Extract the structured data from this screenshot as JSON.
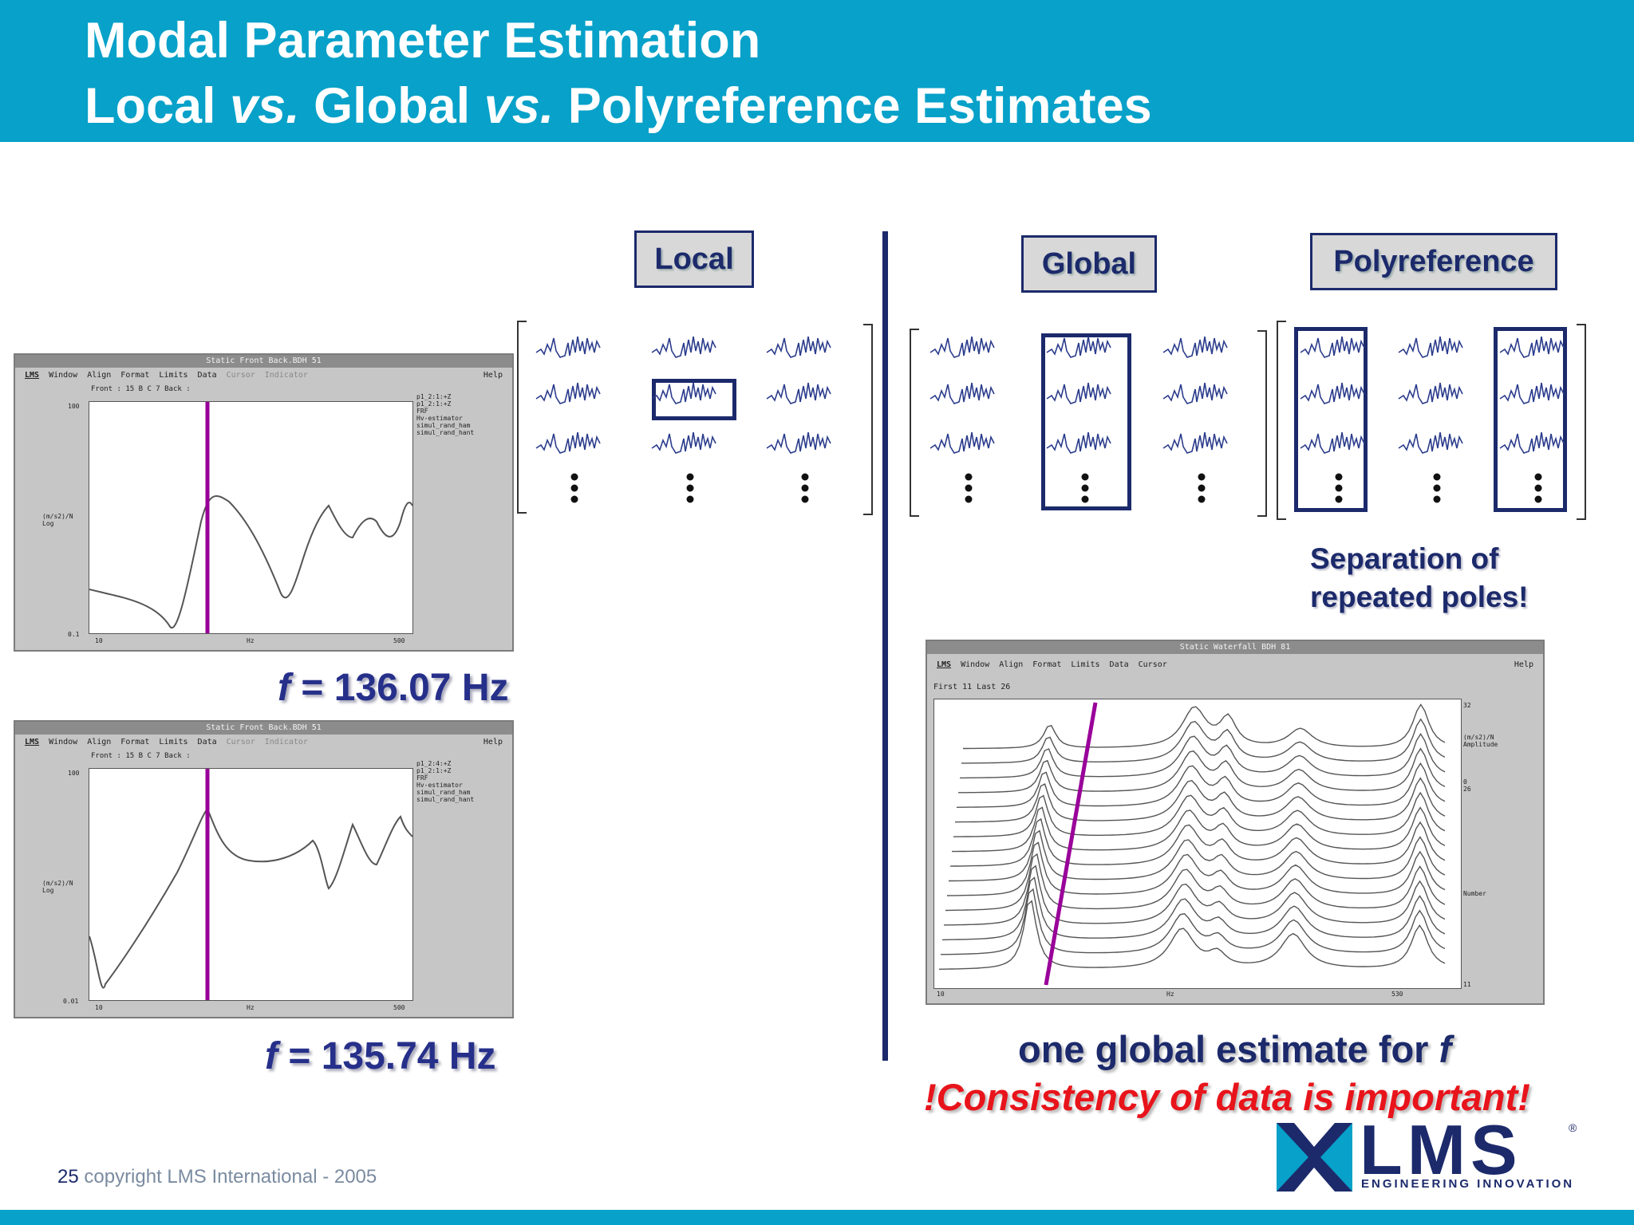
{
  "slide": {
    "title_line1": "Modal Parameter Estimation",
    "title_line2": {
      "a": "Local ",
      "b": "vs.",
      "c": " Global ",
      "d": "vs.",
      "e": " Polyreference Estimates"
    },
    "label_local": "Local",
    "label_global": "Global",
    "label_poly": "Polyreference",
    "freq1": {
      "sym": "f",
      "rest": " = 136.07 Hz"
    },
    "freq2": {
      "sym": "f",
      "rest": " = 135.74 Hz"
    },
    "separation": {
      "line1": "Separation of",
      "line2": "repeated poles!"
    },
    "global_note": {
      "text": "one global estimate for ",
      "sym": "f"
    },
    "consistency": "!Consistency of data is important!",
    "footer": {
      "page": "25",
      "text": " copyright LMS International - 2005"
    },
    "logo": {
      "text": "LMS",
      "tagline": "ENGINEERING INNOVATION",
      "mark": "®"
    }
  },
  "window1": {
    "title": "Static Front Back.BDH 51",
    "menu": [
      "Window",
      "Align",
      "Format",
      "Limits",
      "Data",
      "Cursor",
      "Indicator"
    ],
    "help": "Help",
    "sub": "Front :  15  B  C          7   Back :",
    "legend": "p1_2:1:+Z\np1_2:1:+Z\nFRF\nHv-estimator\nsimul_rand_ham\nsimul_rand_hant",
    "ytop": "100",
    "ylabel": "(m/s2)/N\nLog",
    "ybottom": "0.1",
    "xmin": "10",
    "xunit": "Hz",
    "xmax": "500"
  },
  "window2": {
    "title": "Static Front Back.BDH 51",
    "menu": [
      "Window",
      "Align",
      "Format",
      "Limits",
      "Data",
      "Cursor",
      "Indicator"
    ],
    "help": "Help",
    "sub": "Front :  15  B  C          7   Back :",
    "legend": "p1_2:4:+Z\np1_2:1:+Z\nFRF\nHv-estimator\nsimul_rand_ham\nsimul_rand_hant",
    "ytop": "100",
    "ylabel": "(m/s2)/N\nLog",
    "ybottom": "0.01",
    "xmin": "10",
    "xunit": "Hz",
    "xmax": "500"
  },
  "window3": {
    "title": "Static Waterfall BDH 81",
    "menu": [
      "Window",
      "Align",
      "Format",
      "Limits",
      "Data",
      "Cursor"
    ],
    "help": "Help",
    "sub": "First  11    Last  26",
    "r1": "32",
    "r2": "(m/s2)/N\nAmplitude",
    "r3": "0\n26",
    "r4": "Number",
    "r5": "11",
    "xmin": "10",
    "xunit": "Hz",
    "xmax": "530"
  },
  "colors": {
    "band": "#07a1c9",
    "navy": "#1c2a6b",
    "marker": "#990099",
    "alert": "#e8141b"
  }
}
